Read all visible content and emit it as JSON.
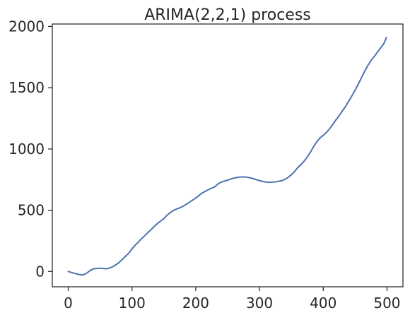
{
  "chart_data": {
    "type": "line",
    "title": "ARIMA(2,2,1) process",
    "xlabel": "",
    "ylabel": "",
    "xlim": [
      -25,
      525
    ],
    "ylim": [
      -125,
      2020
    ],
    "xticks": [
      0,
      100,
      200,
      300,
      400,
      500
    ],
    "yticks": [
      0,
      500,
      1000,
      1500,
      2000
    ],
    "xtick_labels": [
      "0",
      "100",
      "200",
      "300",
      "400",
      "500"
    ],
    "ytick_labels": [
      "0",
      "500",
      "1000",
      "1500",
      "2000"
    ],
    "grid": false,
    "legend": "none",
    "series": [
      {
        "color": "#4c72b0",
        "x": [
          0,
          5,
          10,
          15,
          20,
          25,
          30,
          35,
          40,
          45,
          50,
          55,
          60,
          65,
          70,
          75,
          80,
          85,
          90,
          95,
          100,
          105,
          110,
          115,
          120,
          125,
          130,
          135,
          140,
          145,
          150,
          155,
          160,
          165,
          170,
          175,
          180,
          185,
          190,
          195,
          200,
          205,
          210,
          215,
          220,
          225,
          230,
          235,
          240,
          245,
          250,
          255,
          260,
          265,
          270,
          275,
          280,
          285,
          290,
          295,
          300,
          305,
          310,
          315,
          320,
          325,
          330,
          335,
          340,
          345,
          350,
          355,
          360,
          365,
          370,
          375,
          380,
          385,
          390,
          395,
          400,
          405,
          410,
          415,
          420,
          425,
          430,
          435,
          440,
          445,
          450,
          455,
          460,
          465,
          470,
          475,
          480,
          485,
          490,
          495,
          499
        ],
        "y": [
          0,
          -8,
          -15,
          -22,
          -28,
          -25,
          -10,
          10,
          22,
          25,
          26,
          24,
          22,
          28,
          40,
          55,
          75,
          100,
          125,
          150,
          185,
          215,
          240,
          268,
          292,
          318,
          342,
          368,
          392,
          412,
          432,
          460,
          480,
          498,
          510,
          520,
          532,
          548,
          565,
          582,
          600,
          620,
          640,
          655,
          668,
          680,
          692,
          715,
          730,
          738,
          745,
          755,
          762,
          768,
          771,
          772,
          770,
          765,
          758,
          750,
          742,
          735,
          730,
          728,
          729,
          732,
          736,
          742,
          752,
          768,
          790,
          815,
          848,
          872,
          900,
          935,
          975,
          1020,
          1060,
          1090,
          1112,
          1135,
          1165,
          1200,
          1238,
          1272,
          1310,
          1348,
          1390,
          1435,
          1480,
          1530,
          1582,
          1635,
          1682,
          1722,
          1755,
          1790,
          1825,
          1860,
          1910
        ]
      }
    ]
  }
}
